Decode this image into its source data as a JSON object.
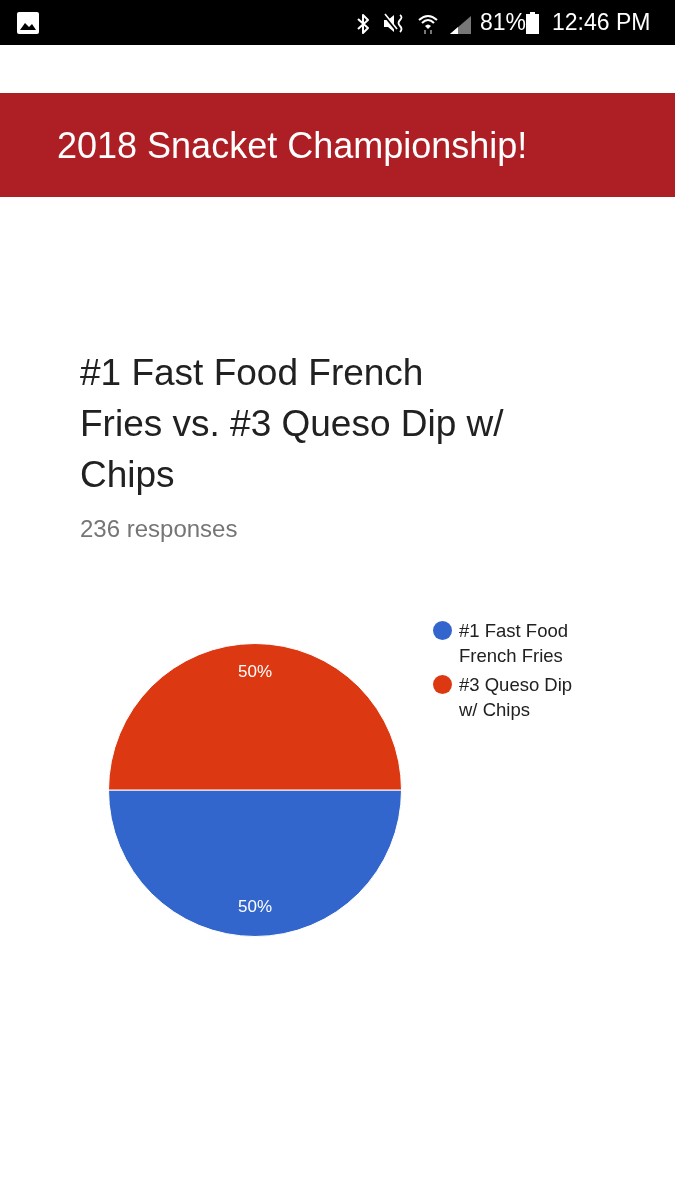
{
  "chart_data": {
    "type": "pie",
    "title": "#1 Fast Food French Fries vs. #3 Queso Dip w/ Chips",
    "subtitle": "236 responses",
    "categories": [
      "#1 Fast Food French Fries",
      "#3 Queso Dip w/ Chips"
    ],
    "values": [
      50,
      50
    ],
    "colors": [
      "#3366cc",
      "#dc3912"
    ],
    "value_labels": [
      "50%",
      "50%"
    ],
    "legend": "top right",
    "annotations": [
      "2018 Snacket Championship!",
      "81%",
      "12:46 PM"
    ]
  }
}
